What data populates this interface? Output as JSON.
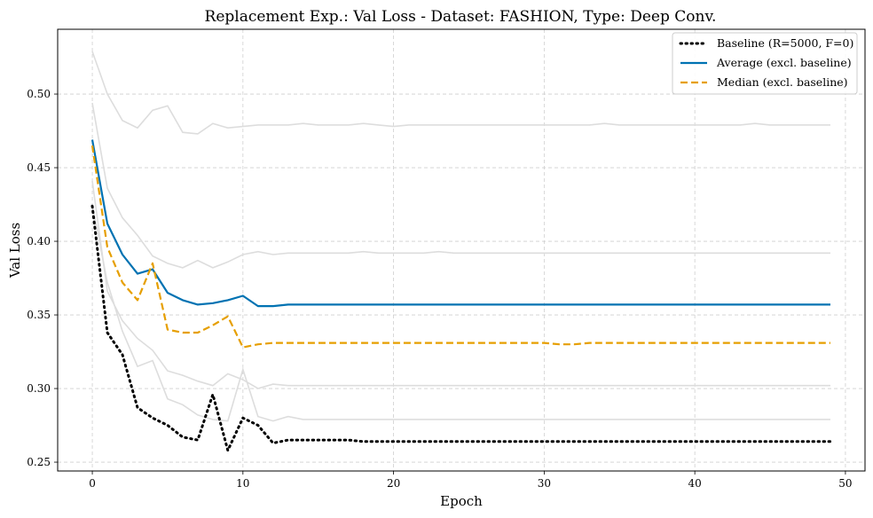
{
  "chart_data": {
    "type": "line",
    "title": "Replacement Exp.: Val Loss - Dataset: FASHION, Type: Deep Conv.",
    "xlabel": "Epoch",
    "ylabel": "Val Loss",
    "xlim": [
      -2.3,
      51.3
    ],
    "ylim": [
      0.244,
      0.544
    ],
    "xticks": [
      0,
      10,
      20,
      30,
      40,
      50
    ],
    "yticks": [
      0.25,
      0.3,
      0.35,
      0.4,
      0.45,
      0.5
    ],
    "ytick_labels": [
      "0.25",
      "0.30",
      "0.35",
      "0.40",
      "0.45",
      "0.50"
    ],
    "xtick_labels": [
      "0",
      "10",
      "20",
      "30",
      "40",
      "50"
    ],
    "grid": true,
    "legend_position": "top-right",
    "x": [
      0,
      1,
      2,
      3,
      4,
      5,
      6,
      7,
      8,
      9,
      10,
      11,
      12,
      13,
      14,
      15,
      16,
      17,
      18,
      19,
      20,
      21,
      22,
      23,
      24,
      25,
      26,
      27,
      28,
      29,
      30,
      31,
      32,
      33,
      34,
      35,
      36,
      37,
      38,
      39,
      40,
      41,
      42,
      43,
      44,
      45,
      46,
      47,
      48,
      49
    ],
    "background_runs": {
      "color": "#dddddd",
      "runs": [
        [
          0.529,
          0.5,
          0.482,
          0.477,
          0.489,
          0.492,
          0.474,
          0.473,
          0.48,
          0.477,
          0.478,
          0.479,
          0.479,
          0.479,
          0.48,
          0.479,
          0.479,
          0.479,
          0.48,
          0.479,
          0.478,
          0.479,
          0.479,
          0.479,
          0.479,
          0.479,
          0.479,
          0.479,
          0.479,
          0.479,
          0.479,
          0.479,
          0.479,
          0.479,
          0.48,
          0.479,
          0.479,
          0.479,
          0.479,
          0.479,
          0.479,
          0.479,
          0.479,
          0.479,
          0.48,
          0.479,
          0.479,
          0.479,
          0.479,
          0.479
        ],
        [
          0.494,
          0.436,
          0.416,
          0.404,
          0.39,
          0.385,
          0.382,
          0.387,
          0.382,
          0.386,
          0.391,
          0.393,
          0.391,
          0.392,
          0.392,
          0.392,
          0.392,
          0.392,
          0.393,
          0.392,
          0.392,
          0.392,
          0.392,
          0.393,
          0.392,
          0.392,
          0.392,
          0.392,
          0.392,
          0.392,
          0.392,
          0.392,
          0.392,
          0.392,
          0.392,
          0.392,
          0.392,
          0.392,
          0.392,
          0.392,
          0.392,
          0.392,
          0.392,
          0.392,
          0.392,
          0.392,
          0.392,
          0.392,
          0.392,
          0.392
        ],
        [
          0.441,
          0.366,
          0.346,
          0.334,
          0.326,
          0.312,
          0.309,
          0.305,
          0.302,
          0.31,
          0.306,
          0.3,
          0.303,
          0.302,
          0.302,
          0.302,
          0.302,
          0.302,
          0.302,
          0.302,
          0.302,
          0.302,
          0.302,
          0.302,
          0.302,
          0.302,
          0.302,
          0.302,
          0.302,
          0.302,
          0.302,
          0.302,
          0.302,
          0.302,
          0.302,
          0.302,
          0.302,
          0.302,
          0.302,
          0.302,
          0.302,
          0.302,
          0.302,
          0.302,
          0.302,
          0.302,
          0.302,
          0.302,
          0.302,
          0.302
        ],
        [
          0.425,
          0.372,
          0.339,
          0.315,
          0.319,
          0.293,
          0.289,
          0.282,
          0.279,
          0.278,
          0.313,
          0.281,
          0.278,
          0.281,
          0.279,
          0.279,
          0.279,
          0.279,
          0.279,
          0.279,
          0.279,
          0.279,
          0.279,
          0.279,
          0.279,
          0.279,
          0.279,
          0.279,
          0.279,
          0.279,
          0.279,
          0.279,
          0.279,
          0.279,
          0.279,
          0.279,
          0.279,
          0.279,
          0.279,
          0.279,
          0.279,
          0.279,
          0.279,
          0.279,
          0.279,
          0.279,
          0.279,
          0.279,
          0.279,
          0.279
        ]
      ]
    },
    "series": [
      {
        "name": "Baseline (R=5000, F=0)",
        "color": "#000000",
        "style": "dotted",
        "values": [
          0.424,
          0.338,
          0.323,
          0.287,
          0.28,
          0.275,
          0.267,
          0.265,
          0.296,
          0.258,
          0.28,
          0.275,
          0.263,
          0.265,
          0.265,
          0.265,
          0.265,
          0.265,
          0.264,
          0.264,
          0.264,
          0.264,
          0.264,
          0.264,
          0.264,
          0.264,
          0.264,
          0.264,
          0.264,
          0.264,
          0.264,
          0.264,
          0.264,
          0.264,
          0.264,
          0.264,
          0.264,
          0.264,
          0.264,
          0.264,
          0.264,
          0.264,
          0.264,
          0.264,
          0.264,
          0.264,
          0.264,
          0.264,
          0.264,
          0.264
        ]
      },
      {
        "name": "Average (excl. baseline)",
        "color": "#0072b2",
        "style": "solid",
        "values": [
          0.469,
          0.412,
          0.391,
          0.378,
          0.381,
          0.365,
          0.36,
          0.357,
          0.358,
          0.36,
          0.363,
          0.356,
          0.356,
          0.357,
          0.357,
          0.357,
          0.357,
          0.357,
          0.357,
          0.357,
          0.357,
          0.357,
          0.357,
          0.357,
          0.357,
          0.357,
          0.357,
          0.357,
          0.357,
          0.357,
          0.357,
          0.357,
          0.357,
          0.357,
          0.357,
          0.357,
          0.357,
          0.357,
          0.357,
          0.357,
          0.357,
          0.357,
          0.357,
          0.357,
          0.357,
          0.357,
          0.357,
          0.357,
          0.357,
          0.357
        ]
      },
      {
        "name": "Median (excl. baseline)",
        "color": "#e69f00",
        "style": "dashed",
        "values": [
          0.465,
          0.396,
          0.372,
          0.36,
          0.385,
          0.34,
          0.338,
          0.338,
          0.343,
          0.349,
          0.328,
          0.33,
          0.331,
          0.331,
          0.331,
          0.331,
          0.331,
          0.331,
          0.331,
          0.331,
          0.331,
          0.331,
          0.331,
          0.331,
          0.331,
          0.331,
          0.331,
          0.331,
          0.331,
          0.331,
          0.331,
          0.33,
          0.33,
          0.331,
          0.331,
          0.331,
          0.331,
          0.331,
          0.331,
          0.331,
          0.331,
          0.331,
          0.331,
          0.331,
          0.331,
          0.331,
          0.331,
          0.331,
          0.331,
          0.331
        ]
      }
    ]
  }
}
